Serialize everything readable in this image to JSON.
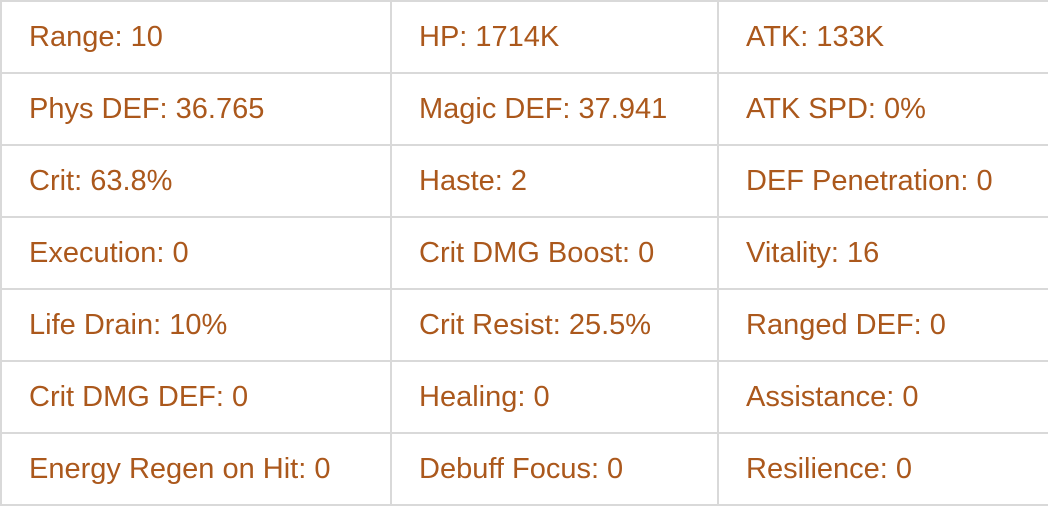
{
  "theme": {
    "text_color": "#ab581c",
    "border_color": "#d9d9d9",
    "background_color": "#ffffff"
  },
  "stats_table": {
    "rows": [
      {
        "cells": [
          {
            "stat": "Range",
            "value": "10",
            "text": "Range: 10"
          },
          {
            "stat": "HP",
            "value": "1714K",
            "text": "HP: 1714K"
          },
          {
            "stat": "ATK",
            "value": "133K",
            "text": "ATK: 133K"
          }
        ]
      },
      {
        "cells": [
          {
            "stat": "Phys DEF",
            "value": "36.765",
            "text": "Phys DEF: 36.765"
          },
          {
            "stat": "Magic DEF",
            "value": "37.941",
            "text": "Magic DEF: 37.941"
          },
          {
            "stat": "ATK SPD",
            "value": "0%",
            "text": "ATK SPD: 0%"
          }
        ]
      },
      {
        "cells": [
          {
            "stat": "Crit",
            "value": "63.8%",
            "text": "Crit: 63.8%"
          },
          {
            "stat": "Haste",
            "value": "2",
            "text": "Haste: 2"
          },
          {
            "stat": "DEF Penetration",
            "value": "0",
            "text": "DEF Penetration: 0"
          }
        ]
      },
      {
        "cells": [
          {
            "stat": "Execution",
            "value": "0",
            "text": "Execution: 0"
          },
          {
            "stat": "Crit DMG Boost",
            "value": "0",
            "text": "Crit DMG Boost: 0"
          },
          {
            "stat": "Vitality",
            "value": "16",
            "text": "Vitality: 16"
          }
        ]
      },
      {
        "cells": [
          {
            "stat": "Life Drain",
            "value": "10%",
            "text": "Life Drain: 10%"
          },
          {
            "stat": "Crit Resist",
            "value": "25.5%",
            "text": "Crit Resist: 25.5%"
          },
          {
            "stat": "Ranged DEF",
            "value": "0",
            "text": "Ranged DEF: 0"
          }
        ]
      },
      {
        "cells": [
          {
            "stat": "Crit DMG DEF",
            "value": "0",
            "text": "Crit DMG DEF: 0"
          },
          {
            "stat": "Healing",
            "value": "0",
            "text": "Healing: 0"
          },
          {
            "stat": "Assistance",
            "value": "0",
            "text": "Assistance: 0"
          }
        ]
      },
      {
        "cells": [
          {
            "stat": "Energy Regen on Hit",
            "value": "0",
            "text": "Energy Regen on Hit: 0"
          },
          {
            "stat": "Debuff Focus",
            "value": "0",
            "text": "Debuff Focus: 0"
          },
          {
            "stat": "Resilience",
            "value": "0",
            "text": "Resilience: 0"
          }
        ]
      }
    ]
  }
}
